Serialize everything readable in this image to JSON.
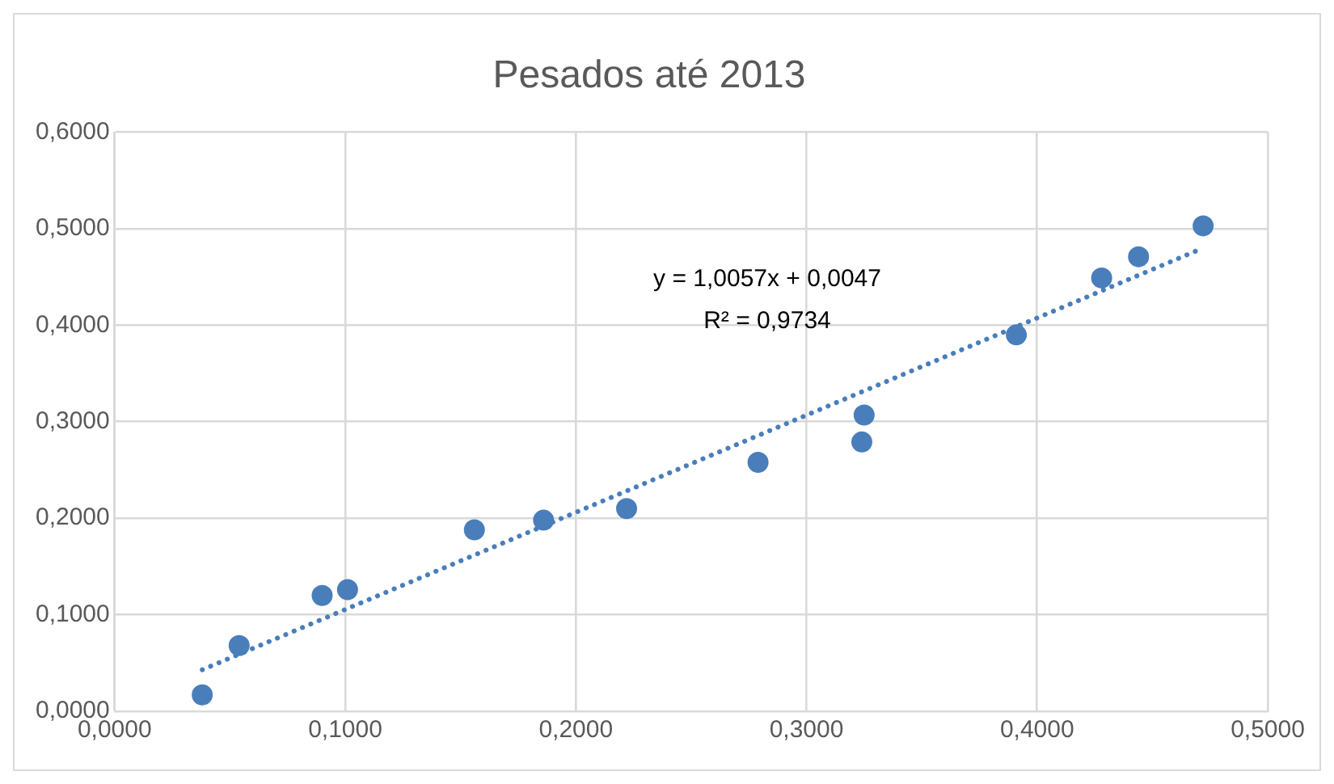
{
  "chart_data": {
    "type": "scatter",
    "title": "Pesados até 2013",
    "series": [
      {
        "type": "scatter",
        "color": "#4a7ebb",
        "marker": "circle",
        "x": [
          0.038,
          0.054,
          0.09,
          0.101,
          0.156,
          0.186,
          0.222,
          0.279,
          0.324,
          0.325,
          0.391,
          0.428,
          0.444,
          0.472
        ],
        "values": [
          0.017,
          0.068,
          0.12,
          0.126,
          0.188,
          0.198,
          0.21,
          0.258,
          0.279,
          0.307,
          0.39,
          0.449,
          0.471,
          0.503
        ]
      },
      {
        "type": "line",
        "color": "#4a7ebb",
        "line_style": "dotted",
        "marker": "none",
        "x": [
          0.038,
          0.472
        ],
        "values": [
          0.043,
          0.48
        ]
      }
    ],
    "annotations": [
      "y = 1,0057x + 0,0047",
      "R² = 0,9734"
    ],
    "xlim": [
      0,
      0.5
    ],
    "xticks": [
      {
        "value": 0,
        "label": "0,0000"
      },
      {
        "value": 0.1,
        "label": "0,1000"
      },
      {
        "value": 0.2,
        "label": "0,2000"
      },
      {
        "value": 0.3,
        "label": "0,3000"
      },
      {
        "value": 0.4,
        "label": "0,4000"
      },
      {
        "value": 0.5,
        "label": "0,5000"
      }
    ],
    "ylim": [
      0,
      0.6
    ],
    "yticks": [
      {
        "value": 0,
        "label": "0,0000"
      },
      {
        "value": 0.1,
        "label": "0,1000"
      },
      {
        "value": 0.2,
        "label": "0,2000"
      },
      {
        "value": 0.3,
        "label": "0,3000"
      },
      {
        "value": 0.4,
        "label": "0,4000"
      },
      {
        "value": 0.5,
        "label": "0,5000"
      },
      {
        "value": 0.6,
        "label": "0,6000"
      }
    ],
    "grid": true,
    "legend": false
  }
}
